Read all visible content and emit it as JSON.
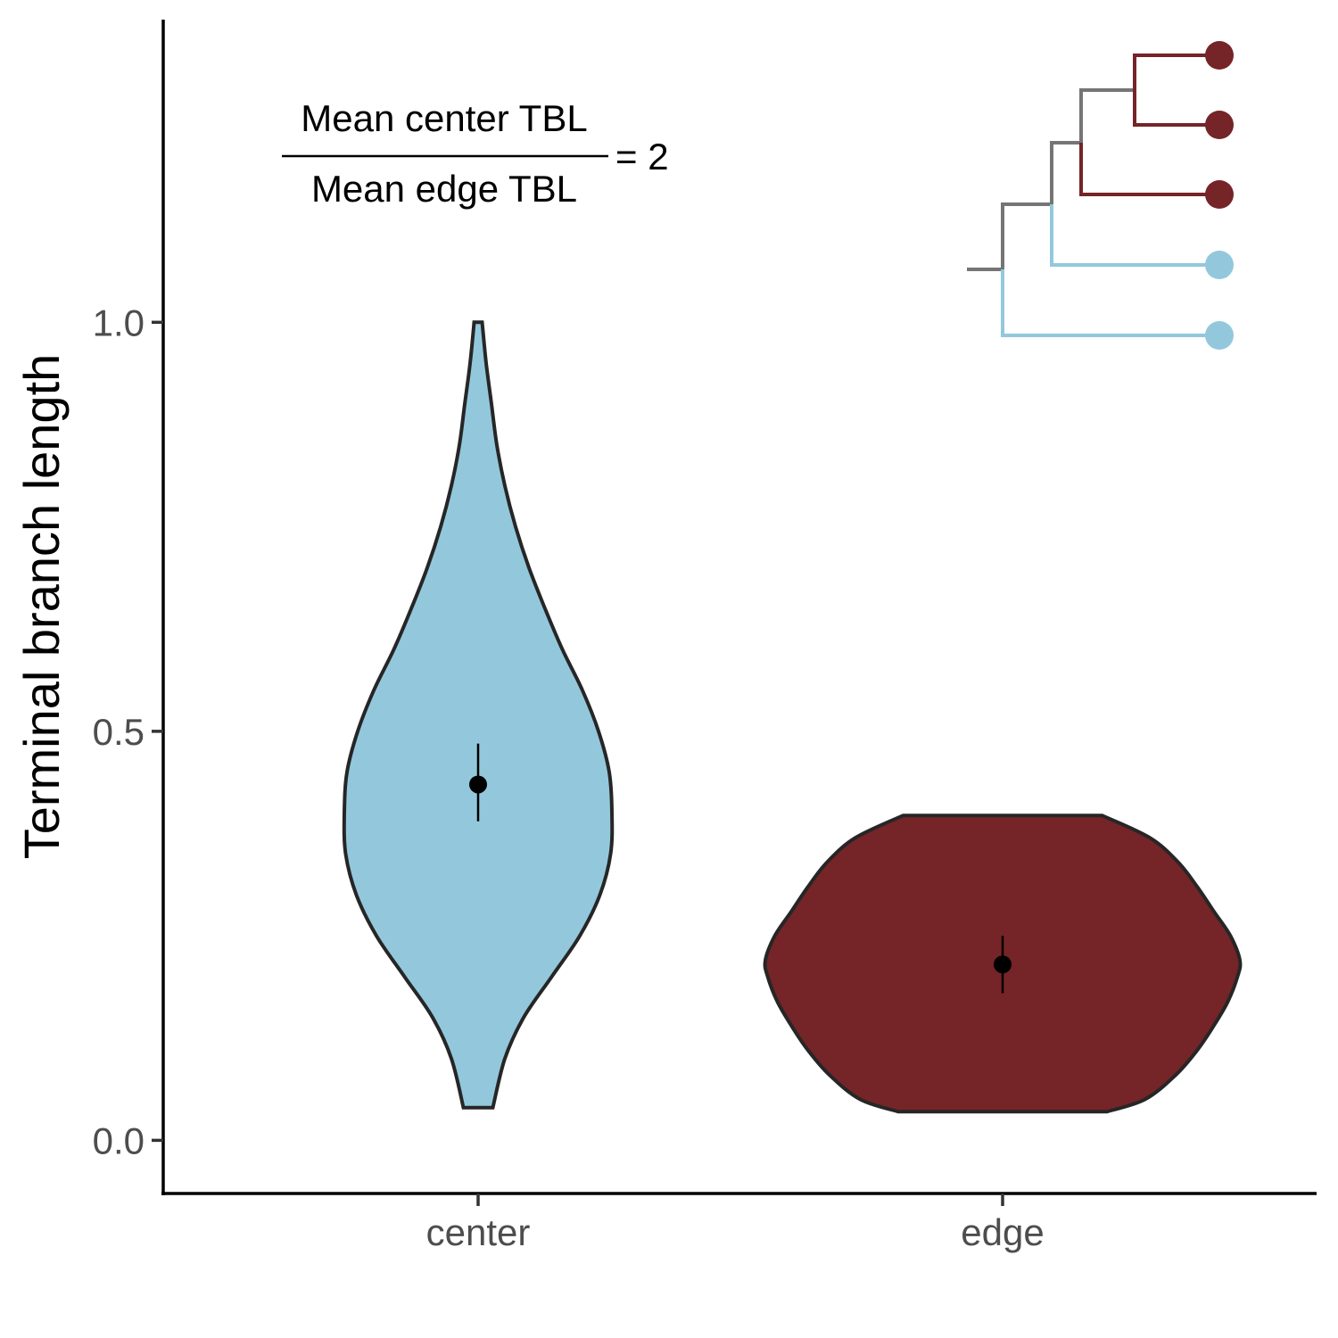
{
  "chart_data": {
    "type": "violin",
    "ylabel": "Terminal branch length",
    "xlabel": "",
    "ylim": [
      -0.065,
      1.37
    ],
    "yticks": [
      0.0,
      0.5,
      1.0
    ],
    "ytick_labels": [
      "0.0",
      "0.5",
      "1.0"
    ],
    "grid": false,
    "categories": [
      "center",
      "edge"
    ],
    "series": [
      {
        "category": "center",
        "color": "#93C8DC",
        "min": 0.04,
        "max": 1.0,
        "mean": 0.435,
        "error_low": 0.39,
        "error_high": 0.485,
        "density": [
          [
            0.04,
            0.11
          ],
          [
            0.1,
            0.2
          ],
          [
            0.15,
            0.34
          ],
          [
            0.2,
            0.55
          ],
          [
            0.25,
            0.76
          ],
          [
            0.3,
            0.91
          ],
          [
            0.35,
            0.99
          ],
          [
            0.4,
            1.0
          ],
          [
            0.45,
            0.98
          ],
          [
            0.5,
            0.9
          ],
          [
            0.55,
            0.78
          ],
          [
            0.6,
            0.63
          ],
          [
            0.65,
            0.5
          ],
          [
            0.7,
            0.38
          ],
          [
            0.75,
            0.28
          ],
          [
            0.8,
            0.2
          ],
          [
            0.85,
            0.14
          ],
          [
            0.9,
            0.1
          ],
          [
            0.95,
            0.06
          ],
          [
            1.0,
            0.03
          ]
        ]
      },
      {
        "category": "edge",
        "color": "#752427",
        "min": 0.035,
        "max": 0.397,
        "mean": 0.215,
        "error_low": 0.18,
        "error_high": 0.25,
        "density": [
          [
            0.035,
            0.44
          ],
          [
            0.05,
            0.6
          ],
          [
            0.08,
            0.73
          ],
          [
            0.11,
            0.82
          ],
          [
            0.14,
            0.89
          ],
          [
            0.17,
            0.95
          ],
          [
            0.2,
            0.99
          ],
          [
            0.22,
            1.0
          ],
          [
            0.25,
            0.96
          ],
          [
            0.28,
            0.89
          ],
          [
            0.31,
            0.82
          ],
          [
            0.34,
            0.74
          ],
          [
            0.37,
            0.62
          ],
          [
            0.397,
            0.42
          ]
        ]
      }
    ]
  },
  "annotation": {
    "numerator": "Mean center TBL",
    "denominator": "Mean edge TBL",
    "equals": "= 2"
  },
  "tree_inset": {
    "colors": {
      "internal": "#757575",
      "edge": "#752427",
      "center": "#93C8DC"
    },
    "tips": [
      "edge",
      "edge",
      "edge",
      "center",
      "center"
    ]
  }
}
